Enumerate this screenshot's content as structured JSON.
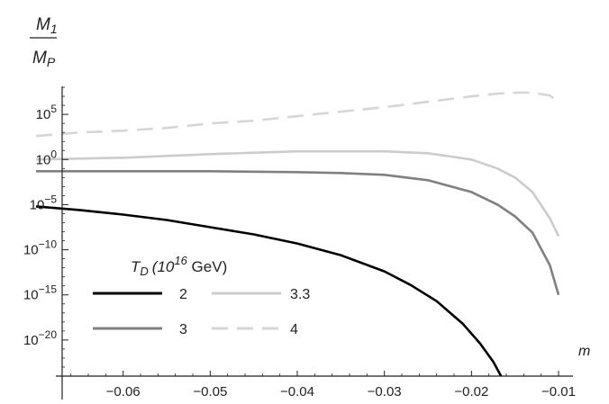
{
  "chart_data": {
    "type": "line",
    "title": "",
    "ylabel": {
      "numerator": "M",
      "numerator_sub": "1",
      "denominator": "M",
      "denominator_sub": "P"
    },
    "xlabel": "m",
    "x_range": [
      -0.07,
      -0.01
    ],
    "y_scale": "log10",
    "y_exponent_range": [
      -24,
      9
    ],
    "x_ticks": [
      {
        "value": -0.06,
        "label": "−0.06"
      },
      {
        "value": -0.05,
        "label": "−0.05"
      },
      {
        "value": -0.04,
        "label": "−0.04"
      },
      {
        "value": -0.03,
        "label": "−0.03"
      },
      {
        "value": -0.02,
        "label": "−0.02"
      },
      {
        "value": -0.01,
        "label": "−0.01"
      }
    ],
    "y_ticks": [
      {
        "exp": 5,
        "base": "10",
        "sup": "5"
      },
      {
        "exp": 0,
        "base": "10",
        "sup": "0"
      },
      {
        "exp": -5,
        "base": "10",
        "sup": "−5"
      },
      {
        "exp": -10,
        "base": "10",
        "sup": "−10"
      },
      {
        "exp": -15,
        "base": "10",
        "sup": "−15"
      },
      {
        "exp": -20,
        "base": "10",
        "sup": "−20"
      }
    ],
    "legend": {
      "title_var": "T",
      "title_sub": "D",
      "title_unit_base": "(10",
      "title_unit_sup": "16",
      "title_unit_rest": " GeV)",
      "placement": "bottom-left"
    },
    "series": [
      {
        "name": "2",
        "color": "#000000",
        "dash": "solid",
        "x": [
          -0.07,
          -0.065,
          -0.06,
          -0.055,
          -0.05,
          -0.045,
          -0.04,
          -0.035,
          -0.03,
          -0.027,
          -0.024,
          -0.021,
          -0.019,
          -0.0175,
          -0.0166
        ],
        "log10_y": [
          -5.2,
          -5.6,
          -6.1,
          -6.7,
          -7.5,
          -8.3,
          -9.3,
          -10.6,
          -12.4,
          -13.9,
          -15.7,
          -18.2,
          -20.4,
          -22.4,
          -24.0
        ]
      },
      {
        "name": "3",
        "color": "#808080",
        "dash": "solid",
        "x": [
          -0.07,
          -0.06,
          -0.05,
          -0.04,
          -0.035,
          -0.03,
          -0.025,
          -0.02,
          -0.017,
          -0.015,
          -0.013,
          -0.011,
          -0.01
        ],
        "log10_y": [
          -1.3,
          -1.3,
          -1.3,
          -1.4,
          -1.5,
          -1.7,
          -2.3,
          -3.6,
          -5.0,
          -6.3,
          -8.1,
          -11.7,
          -15.0
        ]
      },
      {
        "name": "3.3",
        "color": "#cccccc",
        "dash": "solid",
        "x": [
          -0.07,
          -0.06,
          -0.05,
          -0.04,
          -0.035,
          -0.03,
          -0.025,
          -0.02,
          -0.017,
          -0.015,
          -0.013,
          -0.011,
          -0.01
        ],
        "log10_y": [
          0.0,
          0.2,
          0.6,
          0.9,
          0.9,
          0.9,
          0.7,
          0.0,
          -1.0,
          -2.0,
          -3.6,
          -6.5,
          -8.5
        ]
      },
      {
        "name": "4",
        "color": "#d6d6d6",
        "dash": "dashed",
        "x": [
          -0.07,
          -0.065,
          -0.06,
          -0.055,
          -0.05,
          -0.045,
          -0.04,
          -0.035,
          -0.03,
          -0.025,
          -0.02,
          -0.017,
          -0.015,
          -0.013,
          -0.011,
          -0.01
        ],
        "log10_y": [
          2.6,
          3.0,
          3.2,
          3.5,
          4.0,
          4.3,
          4.8,
          5.3,
          5.8,
          6.4,
          7.0,
          7.3,
          7.4,
          7.4,
          7.1,
          6.4
        ]
      }
    ]
  }
}
